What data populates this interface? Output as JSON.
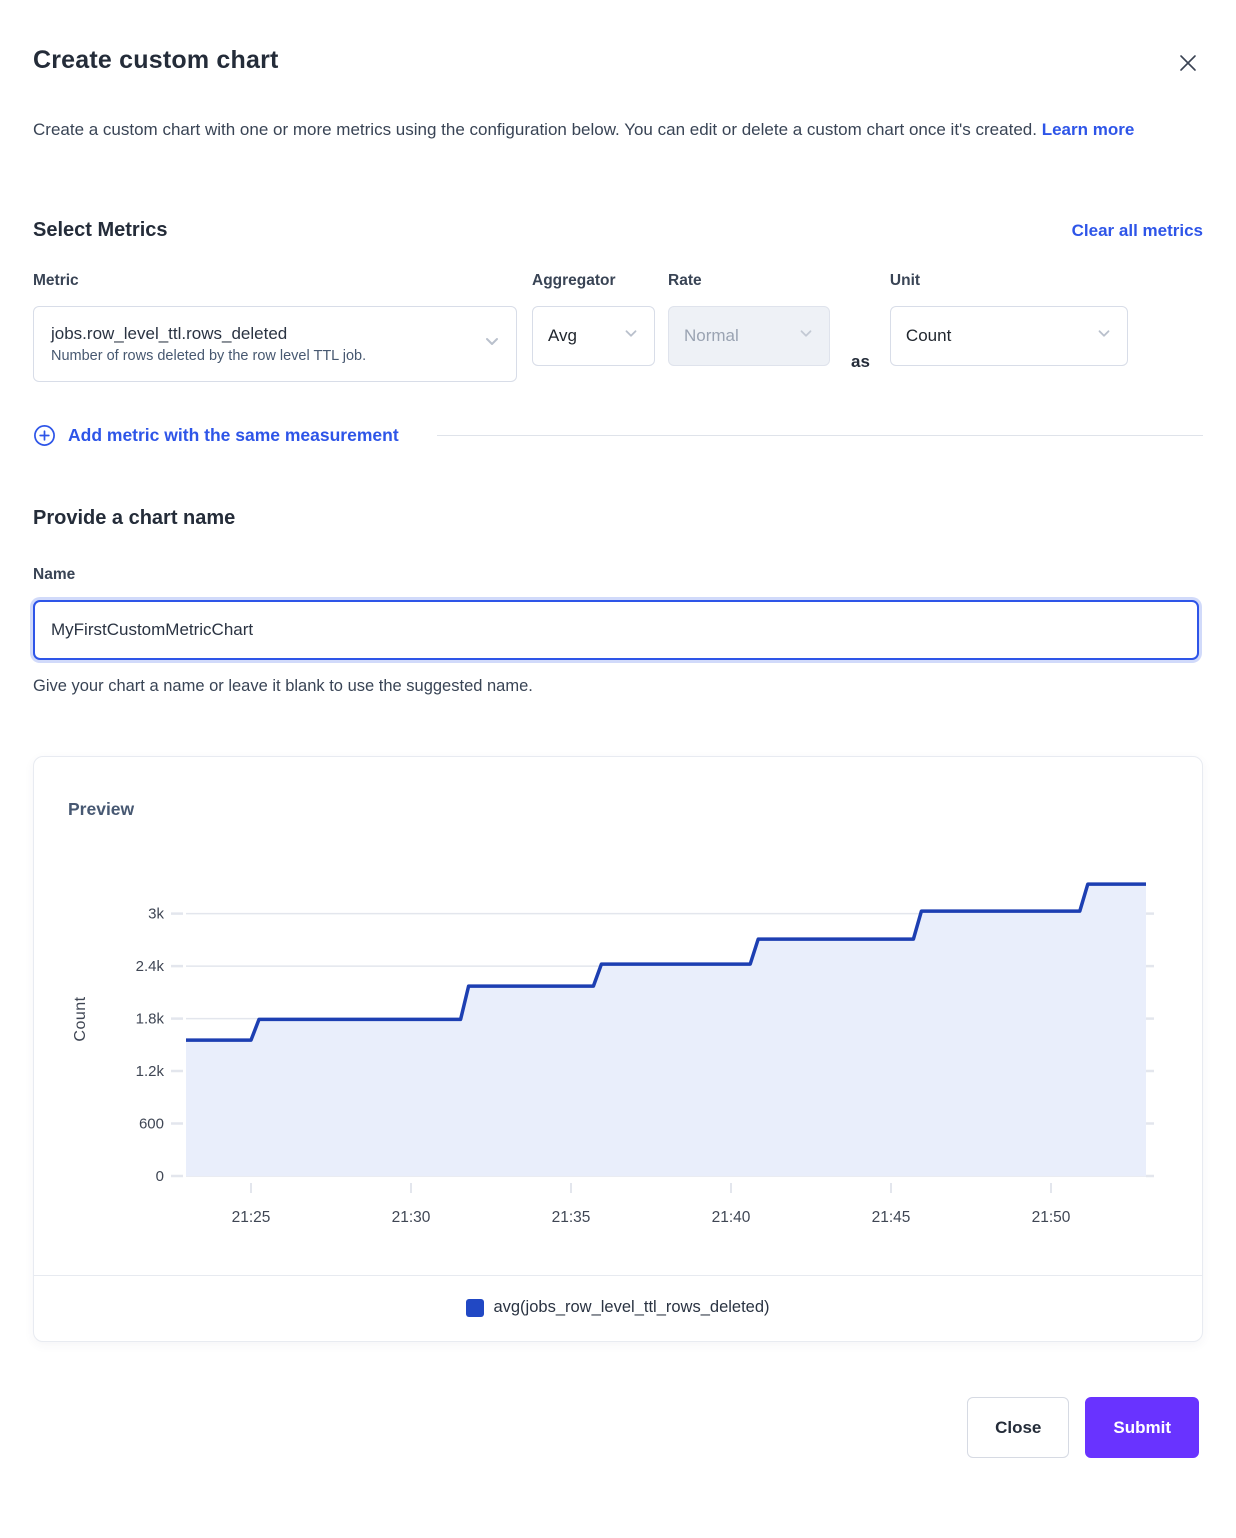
{
  "dialog": {
    "title": "Create custom chart",
    "description": "Create a custom chart with one or more metrics using the configuration below. You can edit or delete a custom chart once it's created.",
    "learn_more_label": "Learn more"
  },
  "metrics_section": {
    "heading": "Select Metrics",
    "clear_all_label": "Clear all metrics",
    "metric_label": "Metric",
    "metric_value": "jobs.row_level_ttl.rows_deleted",
    "metric_description": "Number of rows deleted by the row level TTL job.",
    "aggregator_label": "Aggregator",
    "aggregator_value": "Avg",
    "rate_label": "Rate",
    "rate_value": "Normal",
    "as_label": "as",
    "unit_label": "Unit",
    "unit_value": "Count",
    "add_metric_label": "Add metric with the same measurement"
  },
  "name_section": {
    "heading": "Provide a chart name",
    "label": "Name",
    "value": "MyFirstCustomMetricChart",
    "helper": "Give your chart a name or leave it blank to use the suggested name."
  },
  "preview": {
    "heading": "Preview",
    "legend_label": "avg(jobs_row_level_ttl_rows_deleted)"
  },
  "footer": {
    "close_label": "Close",
    "submit_label": "Submit"
  },
  "colors": {
    "link_blue": "#2e55e8",
    "accent_purple": "#6933ff",
    "line_blue": "#1d3fb2",
    "fill_blue": "#e9eefb",
    "legend_swatch": "#2148c4",
    "grid_gray": "#e3e6ed"
  },
  "chart_data": {
    "type": "area-step",
    "title": "",
    "xlabel": "",
    "ylabel": "Count",
    "x_unit": "minutes-of-day (HH:MM)",
    "xlim": [
      1282.97,
      1312.97
    ],
    "ylim": [
      0,
      3590
    ],
    "grid": true,
    "legend_position": "bottom",
    "x_ticks": [
      {
        "t": 1285,
        "label": "21:25"
      },
      {
        "t": 1290,
        "label": "21:30"
      },
      {
        "t": 1295,
        "label": "21:35"
      },
      {
        "t": 1300,
        "label": "21:40"
      },
      {
        "t": 1305,
        "label": "21:45"
      },
      {
        "t": 1310,
        "label": "21:50"
      }
    ],
    "y_ticks": [
      {
        "v": 0,
        "label": "0"
      },
      {
        "v": 600,
        "label": "600"
      },
      {
        "v": 1200,
        "label": "1.2k"
      },
      {
        "v": 1800,
        "label": "1.8k"
      },
      {
        "v": 2400,
        "label": "2.4k"
      },
      {
        "v": 3000,
        "label": "3k"
      }
    ],
    "series": [
      {
        "name": "avg(jobs_row_level_ttl_rows_deleted)",
        "points": [
          [
            1282.97,
            1554
          ],
          [
            1285.0,
            1554
          ],
          [
            1285.25,
            1790
          ],
          [
            1291.55,
            1790
          ],
          [
            1291.8,
            2171
          ],
          [
            1295.7,
            2171
          ],
          [
            1295.95,
            2423
          ],
          [
            1300.6,
            2423
          ],
          [
            1300.85,
            2709
          ],
          [
            1305.7,
            2709
          ],
          [
            1305.95,
            3029
          ],
          [
            1310.9,
            3029
          ],
          [
            1311.15,
            3337
          ],
          [
            1312.97,
            3337
          ]
        ]
      }
    ]
  }
}
